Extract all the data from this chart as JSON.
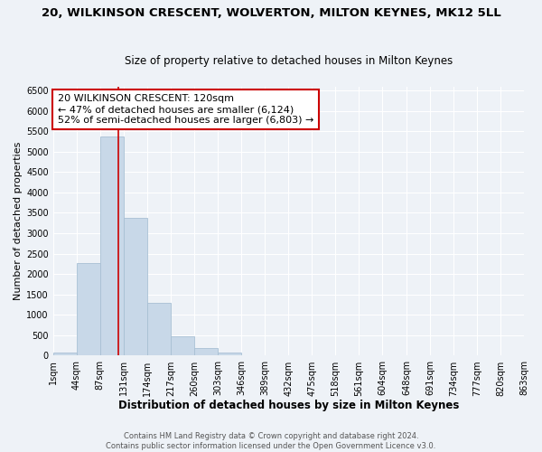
{
  "title": "20, WILKINSON CRESCENT, WOLVERTON, MILTON KEYNES, MK12 5LL",
  "subtitle": "Size of property relative to detached houses in Milton Keynes",
  "xlabel": "Distribution of detached houses by size in Milton Keynes",
  "ylabel": "Number of detached properties",
  "bar_edges": [
    1,
    44,
    87,
    131,
    174,
    217,
    260,
    303,
    346,
    389,
    432,
    475,
    518,
    561,
    604,
    648,
    691,
    734,
    777,
    820,
    863
  ],
  "bar_heights": [
    70,
    2280,
    5360,
    3370,
    1290,
    480,
    195,
    80,
    0,
    0,
    0,
    0,
    0,
    0,
    0,
    0,
    0,
    0,
    0,
    0
  ],
  "bar_color": "#c8d8e8",
  "bar_edgecolor": "#a8c0d4",
  "vline_x": 120,
  "vline_color": "#cc0000",
  "ylim": [
    0,
    6600
  ],
  "yticks": [
    0,
    500,
    1000,
    1500,
    2000,
    2500,
    3000,
    3500,
    4000,
    4500,
    5000,
    5500,
    6000,
    6500
  ],
  "xtick_labels": [
    "1sqm",
    "44sqm",
    "87sqm",
    "131sqm",
    "174sqm",
    "217sqm",
    "260sqm",
    "303sqm",
    "346sqm",
    "389sqm",
    "432sqm",
    "475sqm",
    "518sqm",
    "561sqm",
    "604sqm",
    "648sqm",
    "691sqm",
    "734sqm",
    "777sqm",
    "820sqm",
    "863sqm"
  ],
  "annotation_title": "20 WILKINSON CRESCENT: 120sqm",
  "annotation_line1": "← 47% of detached houses are smaller (6,124)",
  "annotation_line2": "52% of semi-detached houses are larger (6,803) →",
  "annotation_box_color": "#ffffff",
  "annotation_box_edgecolor": "#cc0000",
  "footer_line1": "Contains HM Land Registry data © Crown copyright and database right 2024.",
  "footer_line2": "Contains public sector information licensed under the Open Government Licence v3.0.",
  "background_color": "#eef2f7",
  "grid_color": "#ffffff",
  "title_fontsize": 9.5,
  "subtitle_fontsize": 8.5,
  "xlabel_fontsize": 8.5,
  "ylabel_fontsize": 8,
  "tick_fontsize": 7,
  "annotation_fontsize": 8,
  "footer_fontsize": 6
}
